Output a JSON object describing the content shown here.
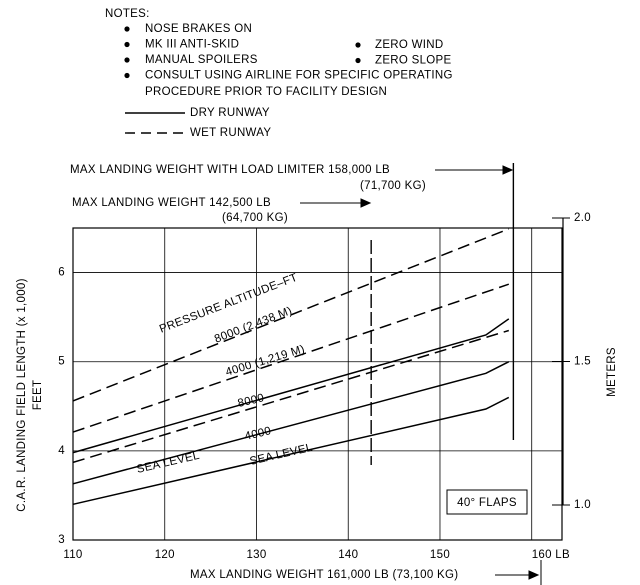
{
  "chart_data": {
    "type": "line",
    "notes_title": "NOTES:",
    "notes_left": [
      "NOSE BRAKES ON",
      "MK III ANTI-SKID",
      "MANUAL SPOILERS",
      "CONSULT USING AIRLINE FOR SPECIFIC OPERATING"
    ],
    "notes_continuation": "PROCEDURE PRIOR TO FACILITY DESIGN",
    "notes_right": [
      "ZERO WIND",
      "ZERO SLOPE"
    ],
    "legend": [
      {
        "label": "DRY RUNWAY",
        "dashed": false
      },
      {
        "label": "WET RUNWAY",
        "dashed": true
      }
    ],
    "annotations": [
      "MAX LANDING WEIGHT WITH LOAD LIMITER 158,000 LB",
      "(71,700 KG)",
      "MAX LANDING WEIGHT 142,500 LB",
      "(64,700 KG)",
      "MAX LANDING WEIGHT 161,000 LB (73,100 KG)",
      "40° FLAPS",
      "PRESSURE ALTITUDE–FT"
    ],
    "reference_lines": [
      142.5,
      158
    ],
    "y_label": "C.A.R. LANDING FIELD LENGTH (x 1,000)",
    "y_label_units": "FEET",
    "y2_label": "METERS",
    "xlim": [
      110,
      163.3
    ],
    "xticks": [
      110,
      120,
      130,
      140,
      150,
      {
        "value": 160,
        "label": "160 LB"
      }
    ],
    "ylim": [
      3,
      6.5
    ],
    "yticks": [
      3,
      4,
      5,
      6
    ],
    "y2lim": [
      1,
      2
    ],
    "y2ticks": [
      {
        "value": 1,
        "label": "1.0"
      },
      1.5,
      {
        "value": 2,
        "label": "2.0"
      }
    ],
    "grid": true,
    "color": "#000000",
    "series": [
      {
        "name": "SEA LEVEL",
        "dashed": false,
        "x": [
          110,
          155,
          157.5
        ],
        "values": [
          3.4,
          4.47,
          4.6
        ]
      },
      {
        "name": "4000",
        "dashed": false,
        "x": [
          110,
          155,
          157.5
        ],
        "values": [
          3.63,
          4.87,
          5.0
        ]
      },
      {
        "name": "8000",
        "dashed": false,
        "x": [
          110,
          155,
          157.5
        ],
        "values": [
          3.98,
          5.3,
          5.48
        ]
      },
      {
        "name": "SEA LEVEL",
        "dashed": true,
        "x": [
          110,
          157.5
        ],
        "values": [
          3.87,
          5.35
        ]
      },
      {
        "name": "4000 (1,219 M)",
        "dashed": true,
        "x": [
          110,
          157.5
        ],
        "values": [
          4.21,
          5.87
        ]
      },
      {
        "name": "8000 (2,438 M)",
        "dashed": true,
        "x": [
          110,
          157.5
        ],
        "values": [
          4.56,
          6.49
        ]
      }
    ]
  }
}
